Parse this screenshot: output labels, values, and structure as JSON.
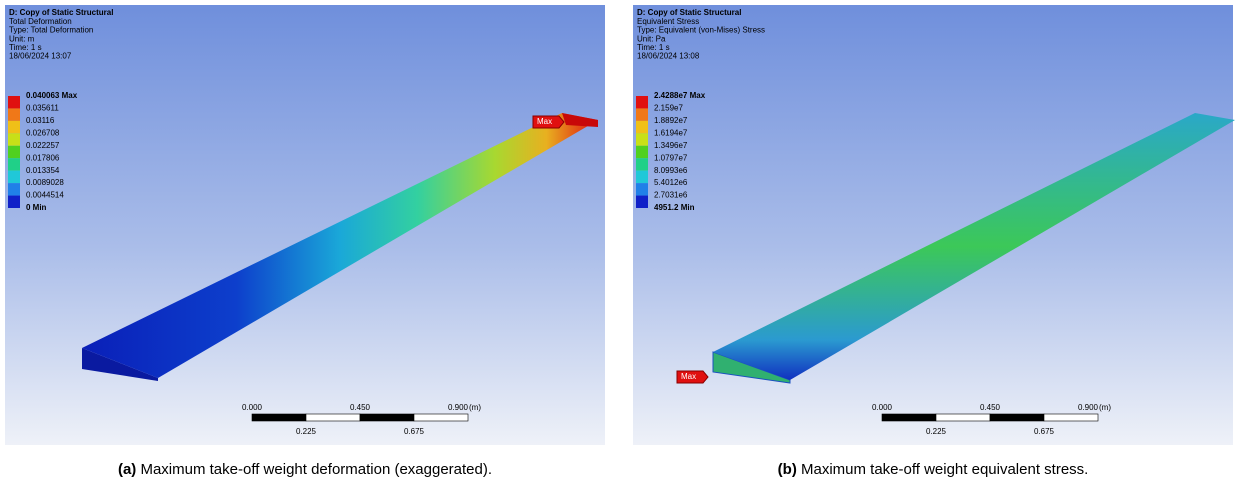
{
  "panels": [
    {
      "header": {
        "title": "D: Copy of Static Structural",
        "lines": [
          "Total Deformation",
          "Type: Total Deformation",
          "Unit: m",
          "Time: 1 s",
          "18/06/2024 13:07"
        ]
      },
      "legend": [
        "0.040063 Max",
        "0.035611",
        "0.03116",
        "0.026708",
        "0.022257",
        "0.017806",
        "0.013354",
        "0.0089028",
        "0.0044514",
        "0 Min"
      ],
      "marker": "Max",
      "scale": {
        "top": [
          "0.000",
          "0.450",
          "0.900"
        ],
        "unit": "(m)",
        "bottom": [
          "0.225",
          "0.675"
        ]
      },
      "caption": {
        "label": "(a)",
        "text": "Maximum take-off weight deformation (exaggerated)."
      }
    },
    {
      "header": {
        "title": "D: Copy of Static Structural",
        "lines": [
          "Equivalent Stress",
          "Type: Equivalent (von-Mises) Stress",
          "Unit: Pa",
          "Time: 1 s",
          "18/06/2024 13:08"
        ]
      },
      "legend": [
        "2.4288e7 Max",
        "2.159e7",
        "1.8892e7",
        "1.6194e7",
        "1.3496e7",
        "1.0797e7",
        "8.0993e6",
        "5.4012e6",
        "2.7031e6",
        "4951.2 Min"
      ],
      "marker": "Max",
      "scale": {
        "top": [
          "0.000",
          "0.450",
          "0.900"
        ],
        "unit": "(m)",
        "bottom": [
          "0.225",
          "0.675"
        ]
      },
      "caption": {
        "label": "(b)",
        "text": "Maximum take-off weight equivalent stress."
      }
    }
  ]
}
